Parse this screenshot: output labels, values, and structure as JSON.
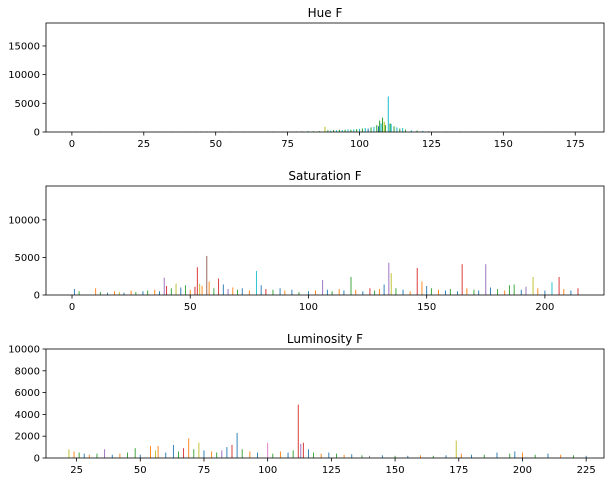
{
  "colors": [
    "#1f77b4",
    "#ff7f0e",
    "#2ca02c",
    "#d62728",
    "#9467bd",
    "#8c564b",
    "#e377c2",
    "#7f7f7f",
    "#bcbd22",
    "#17becf"
  ],
  "chart_data": [
    {
      "type": "bar",
      "title": "Hue F",
      "xlim": [
        -9,
        185
      ],
      "ylim": [
        0,
        19000
      ],
      "xticks": [
        0,
        25,
        50,
        75,
        100,
        125,
        150,
        175
      ],
      "yticks": [
        0,
        5000,
        10000,
        15000
      ],
      "grid": false,
      "bars": [
        {
          "x": 10,
          "y": 80,
          "c": 7
        },
        {
          "x": 25,
          "y": 100,
          "c": 9
        },
        {
          "x": 30,
          "y": 80,
          "c": 7
        },
        {
          "x": 35,
          "y": 80,
          "c": 7
        },
        {
          "x": 40,
          "y": 90,
          "c": 7
        },
        {
          "x": 43,
          "y": 80,
          "c": 7
        },
        {
          "x": 45,
          "y": 90,
          "c": 7
        },
        {
          "x": 47,
          "y": 80,
          "c": 7
        },
        {
          "x": 50,
          "y": 100,
          "c": 7
        },
        {
          "x": 52,
          "y": 80,
          "c": 7
        },
        {
          "x": 55,
          "y": 90,
          "c": 7
        },
        {
          "x": 60,
          "y": 80,
          "c": 7
        },
        {
          "x": 62,
          "y": 80,
          "c": 7
        },
        {
          "x": 65,
          "y": 90,
          "c": 7
        },
        {
          "x": 68,
          "y": 80,
          "c": 7
        },
        {
          "x": 70,
          "y": 100,
          "c": 2
        },
        {
          "x": 75,
          "y": 90,
          "c": 7
        },
        {
          "x": 78,
          "y": 100,
          "c": 2
        },
        {
          "x": 80,
          "y": 120,
          "c": 2
        },
        {
          "x": 82,
          "y": 150,
          "c": 9
        },
        {
          "x": 84,
          "y": 130,
          "c": 2
        },
        {
          "x": 86,
          "y": 160,
          "c": 2
        },
        {
          "x": 88,
          "y": 900,
          "c": 8
        },
        {
          "x": 89,
          "y": 300,
          "c": 2
        },
        {
          "x": 90,
          "y": 250,
          "c": 9
        },
        {
          "x": 91,
          "y": 350,
          "c": 2
        },
        {
          "x": 92,
          "y": 300,
          "c": 9
        },
        {
          "x": 93,
          "y": 400,
          "c": 2
        },
        {
          "x": 94,
          "y": 350,
          "c": 9
        },
        {
          "x": 95,
          "y": 400,
          "c": 2
        },
        {
          "x": 96,
          "y": 450,
          "c": 9
        },
        {
          "x": 97,
          "y": 400,
          "c": 2
        },
        {
          "x": 98,
          "y": 450,
          "c": 9
        },
        {
          "x": 99,
          "y": 500,
          "c": 2
        },
        {
          "x": 100,
          "y": 550,
          "c": 9
        },
        {
          "x": 101,
          "y": 600,
          "c": 2
        },
        {
          "x": 102,
          "y": 700,
          "c": 9
        },
        {
          "x": 103,
          "y": 600,
          "c": 0
        },
        {
          "x": 104,
          "y": 800,
          "c": 2
        },
        {
          "x": 105,
          "y": 900,
          "c": 9
        },
        {
          "x": 106,
          "y": 1200,
          "c": 2
        },
        {
          "x": 106.6,
          "y": 1000,
          "c": 0
        },
        {
          "x": 107,
          "y": 2000,
          "c": 2
        },
        {
          "x": 107.5,
          "y": 1500,
          "c": 9
        },
        {
          "x": 108,
          "y": 2500,
          "c": 2
        },
        {
          "x": 108.6,
          "y": 1800,
          "c": 8
        },
        {
          "x": 109,
          "y": 1200,
          "c": 2
        },
        {
          "x": 110,
          "y": 6200,
          "c": 9
        },
        {
          "x": 110.6,
          "y": 1500,
          "c": 2
        },
        {
          "x": 111,
          "y": 1400,
          "c": 9
        },
        {
          "x": 112,
          "y": 1000,
          "c": 2
        },
        {
          "x": 113,
          "y": 800,
          "c": 9
        },
        {
          "x": 114,
          "y": 600,
          "c": 2
        },
        {
          "x": 115,
          "y": 700,
          "c": 9
        },
        {
          "x": 116,
          "y": 400,
          "c": 2
        },
        {
          "x": 118,
          "y": 300,
          "c": 9
        },
        {
          "x": 120,
          "y": 250,
          "c": 2
        },
        {
          "x": 122,
          "y": 200,
          "c": 9
        },
        {
          "x": 124,
          "y": 120,
          "c": 2
        },
        {
          "x": 130,
          "y": 100,
          "c": 7
        },
        {
          "x": 135,
          "y": 90,
          "c": 7
        },
        {
          "x": 140,
          "y": 80,
          "c": 7
        },
        {
          "x": 148,
          "y": 80,
          "c": 7
        },
        {
          "x": 155,
          "y": 90,
          "c": 7
        },
        {
          "x": 165,
          "y": 80,
          "c": 7
        }
      ]
    },
    {
      "type": "bar",
      "title": "Saturation F",
      "xlim": [
        -11,
        225
      ],
      "ylim": [
        0,
        14500
      ],
      "xticks": [
        0,
        50,
        100,
        150,
        200
      ],
      "yticks": [
        0,
        5000,
        10000
      ],
      "grid": false,
      "bars": [
        {
          "x": 1,
          "y": 800,
          "c": 0
        },
        {
          "x": 3,
          "y": 500,
          "c": 2
        },
        {
          "x": 10,
          "y": 900,
          "c": 1
        },
        {
          "x": 12,
          "y": 400,
          "c": 2
        },
        {
          "x": 15,
          "y": 300,
          "c": 0
        },
        {
          "x": 18,
          "y": 500,
          "c": 1
        },
        {
          "x": 20,
          "y": 400,
          "c": 8
        },
        {
          "x": 22,
          "y": 300,
          "c": 0
        },
        {
          "x": 25,
          "y": 600,
          "c": 1
        },
        {
          "x": 27,
          "y": 400,
          "c": 2
        },
        {
          "x": 30,
          "y": 500,
          "c": 0
        },
        {
          "x": 32,
          "y": 600,
          "c": 2
        },
        {
          "x": 35,
          "y": 700,
          "c": 1
        },
        {
          "x": 37,
          "y": 500,
          "c": 0
        },
        {
          "x": 39,
          "y": 2300,
          "c": 4
        },
        {
          "x": 40,
          "y": 1200,
          "c": 3
        },
        {
          "x": 42,
          "y": 900,
          "c": 2
        },
        {
          "x": 44,
          "y": 1500,
          "c": 8
        },
        {
          "x": 46,
          "y": 1000,
          "c": 0
        },
        {
          "x": 48,
          "y": 1300,
          "c": 2
        },
        {
          "x": 50,
          "y": 700,
          "c": 1
        },
        {
          "x": 52,
          "y": 1100,
          "c": 3
        },
        {
          "x": 53,
          "y": 3700,
          "c": 3
        },
        {
          "x": 54,
          "y": 1500,
          "c": 8
        },
        {
          "x": 55,
          "y": 1200,
          "c": 1
        },
        {
          "x": 57,
          "y": 5200,
          "c": 5
        },
        {
          "x": 58,
          "y": 1800,
          "c": 1
        },
        {
          "x": 60,
          "y": 900,
          "c": 2
        },
        {
          "x": 62,
          "y": 2200,
          "c": 3
        },
        {
          "x": 64,
          "y": 1400,
          "c": 0
        },
        {
          "x": 66,
          "y": 800,
          "c": 4
        },
        {
          "x": 68,
          "y": 1000,
          "c": 1
        },
        {
          "x": 70,
          "y": 700,
          "c": 2
        },
        {
          "x": 72,
          "y": 900,
          "c": 0
        },
        {
          "x": 75,
          "y": 600,
          "c": 1
        },
        {
          "x": 78,
          "y": 3200,
          "c": 9
        },
        {
          "x": 80,
          "y": 1300,
          "c": 0
        },
        {
          "x": 82,
          "y": 800,
          "c": 3
        },
        {
          "x": 85,
          "y": 700,
          "c": 2
        },
        {
          "x": 88,
          "y": 900,
          "c": 0
        },
        {
          "x": 90,
          "y": 600,
          "c": 1
        },
        {
          "x": 93,
          "y": 700,
          "c": 0
        },
        {
          "x": 96,
          "y": 400,
          "c": 2
        },
        {
          "x": 100,
          "y": 500,
          "c": 0
        },
        {
          "x": 103,
          "y": 600,
          "c": 1
        },
        {
          "x": 106,
          "y": 2000,
          "c": 4
        },
        {
          "x": 108,
          "y": 700,
          "c": 0
        },
        {
          "x": 110,
          "y": 500,
          "c": 2
        },
        {
          "x": 113,
          "y": 800,
          "c": 1
        },
        {
          "x": 115,
          "y": 600,
          "c": 0
        },
        {
          "x": 118,
          "y": 2400,
          "c": 2
        },
        {
          "x": 120,
          "y": 700,
          "c": 1
        },
        {
          "x": 123,
          "y": 500,
          "c": 0
        },
        {
          "x": 126,
          "y": 900,
          "c": 3
        },
        {
          "x": 128,
          "y": 600,
          "c": 2
        },
        {
          "x": 130,
          "y": 800,
          "c": 1
        },
        {
          "x": 132,
          "y": 1400,
          "c": 0
        },
        {
          "x": 134,
          "y": 4300,
          "c": 4
        },
        {
          "x": 135,
          "y": 2900,
          "c": 8
        },
        {
          "x": 137,
          "y": 900,
          "c": 2
        },
        {
          "x": 140,
          "y": 700,
          "c": 0
        },
        {
          "x": 143,
          "y": 500,
          "c": 1
        },
        {
          "x": 146,
          "y": 3600,
          "c": 3
        },
        {
          "x": 148,
          "y": 1800,
          "c": 1
        },
        {
          "x": 150,
          "y": 1200,
          "c": 0
        },
        {
          "x": 152,
          "y": 900,
          "c": 2
        },
        {
          "x": 155,
          "y": 700,
          "c": 1
        },
        {
          "x": 158,
          "y": 600,
          "c": 0
        },
        {
          "x": 160,
          "y": 800,
          "c": 2
        },
        {
          "x": 163,
          "y": 500,
          "c": 0
        },
        {
          "x": 165,
          "y": 4100,
          "c": 3
        },
        {
          "x": 167,
          "y": 900,
          "c": 1
        },
        {
          "x": 170,
          "y": 700,
          "c": 2
        },
        {
          "x": 172,
          "y": 600,
          "c": 0
        },
        {
          "x": 175,
          "y": 4100,
          "c": 4
        },
        {
          "x": 177,
          "y": 1000,
          "c": 0
        },
        {
          "x": 180,
          "y": 800,
          "c": 2
        },
        {
          "x": 183,
          "y": 600,
          "c": 1
        },
        {
          "x": 185,
          "y": 1300,
          "c": 2
        },
        {
          "x": 187,
          "y": 1400,
          "c": 2
        },
        {
          "x": 190,
          "y": 700,
          "c": 0
        },
        {
          "x": 192,
          "y": 1100,
          "c": 4
        },
        {
          "x": 195,
          "y": 2400,
          "c": 8
        },
        {
          "x": 197,
          "y": 900,
          "c": 1
        },
        {
          "x": 200,
          "y": 600,
          "c": 0
        },
        {
          "x": 203,
          "y": 1700,
          "c": 9
        },
        {
          "x": 206,
          "y": 2400,
          "c": 3
        },
        {
          "x": 208,
          "y": 800,
          "c": 1
        },
        {
          "x": 211,
          "y": 600,
          "c": 0
        },
        {
          "x": 214,
          "y": 900,
          "c": 3
        }
      ]
    },
    {
      "type": "bar",
      "title": "Luminosity F",
      "xlim": [
        13,
        232
      ],
      "ylim": [
        0,
        10000
      ],
      "xticks": [
        25,
        50,
        75,
        100,
        125,
        150,
        175,
        200,
        225
      ],
      "yticks": [
        0,
        2000,
        4000,
        6000,
        8000,
        10000
      ],
      "grid": false,
      "bars": [
        {
          "x": 22,
          "y": 800,
          "c": 8
        },
        {
          "x": 24,
          "y": 600,
          "c": 1
        },
        {
          "x": 26,
          "y": 500,
          "c": 2
        },
        {
          "x": 28,
          "y": 400,
          "c": 0
        },
        {
          "x": 30,
          "y": 300,
          "c": 1
        },
        {
          "x": 33,
          "y": 400,
          "c": 2
        },
        {
          "x": 36,
          "y": 800,
          "c": 4
        },
        {
          "x": 39,
          "y": 300,
          "c": 0
        },
        {
          "x": 42,
          "y": 400,
          "c": 1
        },
        {
          "x": 45,
          "y": 500,
          "c": 2
        },
        {
          "x": 48,
          "y": 900,
          "c": 2
        },
        {
          "x": 50,
          "y": 300,
          "c": 0
        },
        {
          "x": 54,
          "y": 1100,
          "c": 1
        },
        {
          "x": 56,
          "y": 700,
          "c": 8
        },
        {
          "x": 57,
          "y": 1100,
          "c": 1
        },
        {
          "x": 60,
          "y": 500,
          "c": 0
        },
        {
          "x": 63,
          "y": 1200,
          "c": 0
        },
        {
          "x": 65,
          "y": 600,
          "c": 2
        },
        {
          "x": 67,
          "y": 900,
          "c": 3
        },
        {
          "x": 69,
          "y": 1800,
          "c": 1
        },
        {
          "x": 71,
          "y": 800,
          "c": 2
        },
        {
          "x": 73,
          "y": 1400,
          "c": 8
        },
        {
          "x": 75,
          "y": 700,
          "c": 0
        },
        {
          "x": 78,
          "y": 600,
          "c": 1
        },
        {
          "x": 80,
          "y": 500,
          "c": 2
        },
        {
          "x": 82,
          "y": 700,
          "c": 4
        },
        {
          "x": 84,
          "y": 1000,
          "c": 0
        },
        {
          "x": 86,
          "y": 1200,
          "c": 3
        },
        {
          "x": 88,
          "y": 2300,
          "c": 0
        },
        {
          "x": 90,
          "y": 800,
          "c": 2
        },
        {
          "x": 93,
          "y": 600,
          "c": 1
        },
        {
          "x": 96,
          "y": 500,
          "c": 0
        },
        {
          "x": 100,
          "y": 1400,
          "c": 6
        },
        {
          "x": 102,
          "y": 400,
          "c": 2
        },
        {
          "x": 105,
          "y": 600,
          "c": 1
        },
        {
          "x": 108,
          "y": 500,
          "c": 0
        },
        {
          "x": 110,
          "y": 700,
          "c": 2
        },
        {
          "x": 112,
          "y": 4900,
          "c": 3
        },
        {
          "x": 113,
          "y": 1300,
          "c": 4
        },
        {
          "x": 114,
          "y": 1400,
          "c": 3
        },
        {
          "x": 116,
          "y": 800,
          "c": 0
        },
        {
          "x": 118,
          "y": 500,
          "c": 2
        },
        {
          "x": 121,
          "y": 400,
          "c": 1
        },
        {
          "x": 124,
          "y": 500,
          "c": 0
        },
        {
          "x": 127,
          "y": 400,
          "c": 2
        },
        {
          "x": 130,
          "y": 300,
          "c": 1
        },
        {
          "x": 133,
          "y": 350,
          "c": 0
        },
        {
          "x": 137,
          "y": 250,
          "c": 2
        },
        {
          "x": 140,
          "y": 200,
          "c": 7
        },
        {
          "x": 145,
          "y": 250,
          "c": 0
        },
        {
          "x": 150,
          "y": 200,
          "c": 2
        },
        {
          "x": 155,
          "y": 200,
          "c": 0
        },
        {
          "x": 160,
          "y": 250,
          "c": 1
        },
        {
          "x": 165,
          "y": 200,
          "c": 2
        },
        {
          "x": 170,
          "y": 250,
          "c": 0
        },
        {
          "x": 174,
          "y": 1600,
          "c": 8
        },
        {
          "x": 176,
          "y": 400,
          "c": 1
        },
        {
          "x": 180,
          "y": 300,
          "c": 0
        },
        {
          "x": 185,
          "y": 300,
          "c": 2
        },
        {
          "x": 190,
          "y": 500,
          "c": 0
        },
        {
          "x": 195,
          "y": 400,
          "c": 2
        },
        {
          "x": 197,
          "y": 600,
          "c": 0
        },
        {
          "x": 200,
          "y": 500,
          "c": 1
        },
        {
          "x": 205,
          "y": 300,
          "c": 2
        },
        {
          "x": 210,
          "y": 400,
          "c": 0
        },
        {
          "x": 215,
          "y": 300,
          "c": 1
        },
        {
          "x": 220,
          "y": 250,
          "c": 2
        },
        {
          "x": 225,
          "y": 200,
          "c": 0
        }
      ]
    }
  ]
}
